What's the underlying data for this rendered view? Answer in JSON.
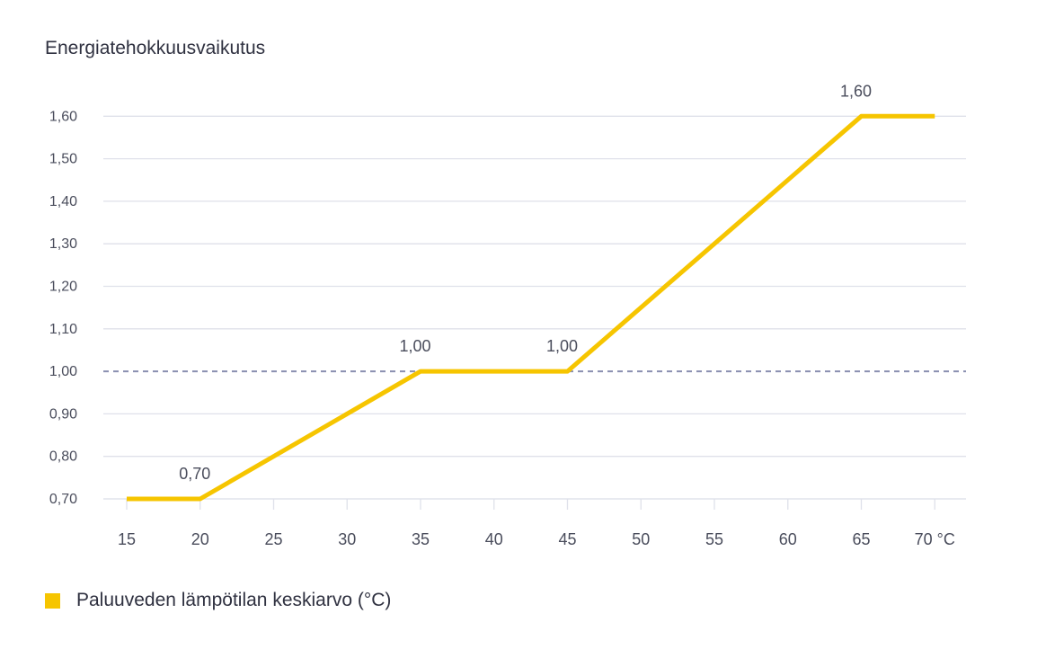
{
  "chart_data": {
    "type": "line",
    "title": "Energiatehokkuusvaikutus",
    "xlabel": "",
    "ylabel": "",
    "x_unit": "°C",
    "x_ticks": [
      15,
      20,
      25,
      30,
      35,
      40,
      45,
      50,
      55,
      60,
      65,
      70
    ],
    "y_ticks": [
      "0,70",
      "0,80",
      "0,90",
      "1,00",
      "1,10",
      "1,20",
      "1,30",
      "1,40",
      "1,50",
      "1,60"
    ],
    "xlim": [
      15,
      70
    ],
    "ylim": [
      0.7,
      1.6
    ],
    "grid": true,
    "reference_line": {
      "y": 1.0,
      "style": "dashed",
      "color": "#8a8fb0"
    },
    "series": [
      {
        "name": "Paluuveden lämpötilan keskiarvo (°C)",
        "color": "#f6c500",
        "points": [
          {
            "x": 15,
            "y": 0.7
          },
          {
            "x": 20,
            "y": 0.7
          },
          {
            "x": 35,
            "y": 1.0
          },
          {
            "x": 45,
            "y": 1.0
          },
          {
            "x": 65,
            "y": 1.6
          },
          {
            "x": 70,
            "y": 1.6
          }
        ]
      }
    ],
    "data_labels": [
      {
        "x": 20,
        "y": 0.7,
        "text": "0,70"
      },
      {
        "x": 35,
        "y": 1.0,
        "text": "1,00"
      },
      {
        "x": 45,
        "y": 1.0,
        "text": "1,00"
      },
      {
        "x": 65,
        "y": 1.6,
        "text": "1,60"
      }
    ],
    "legend": {
      "position": "bottom-left",
      "label": "Paluuveden lämpötilan keskiarvo (°C)"
    }
  }
}
